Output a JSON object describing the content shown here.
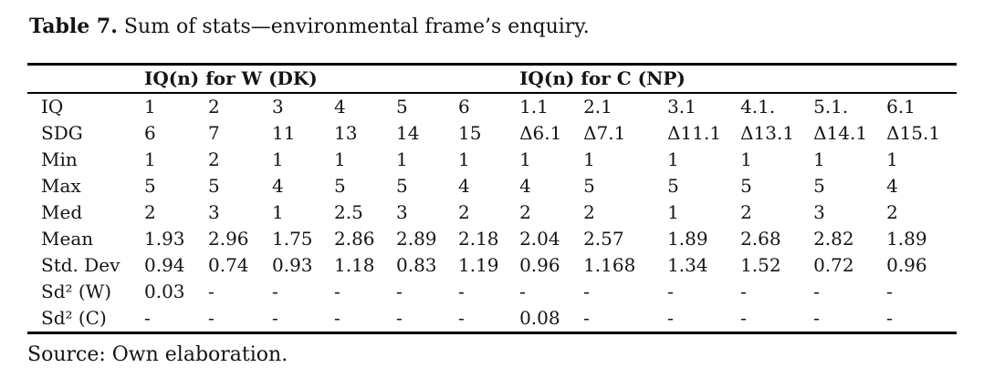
{
  "caption": {
    "number": "Table 7.",
    "text": "Sum of stats—environmental frame’s enquiry."
  },
  "table": {
    "group_headers": [
      {
        "label": "IQ(n) for W (DK)"
      },
      {
        "label": "IQ(n) for C (NP)"
      }
    ],
    "rows": [
      {
        "label": "IQ",
        "values": [
          "1",
          "2",
          "3",
          "4",
          "5",
          "6",
          "1.1",
          "2.1",
          "3.1",
          "4.1.",
          "5.1.",
          "6.1"
        ]
      },
      {
        "label": "SDG",
        "values": [
          "6",
          "7",
          "11",
          "13",
          "14",
          "15",
          "Δ6.1",
          "Δ7.1",
          "Δ11.1",
          "Δ13.1",
          "Δ14.1",
          "Δ15.1"
        ]
      },
      {
        "label": "Min",
        "values": [
          "1",
          "2",
          "1",
          "1",
          "1",
          "1",
          "1",
          "1",
          "1",
          "1",
          "1",
          "1"
        ]
      },
      {
        "label": "Max",
        "values": [
          "5",
          "5",
          "4",
          "5",
          "5",
          "4",
          "4",
          "5",
          "5",
          "5",
          "5",
          "4"
        ]
      },
      {
        "label": "Med",
        "values": [
          "2",
          "3",
          "1",
          "2.5",
          "3",
          "2",
          "2",
          "2",
          "1",
          "2",
          "3",
          "2"
        ]
      },
      {
        "label": "Mean",
        "values": [
          "1.93",
          "2.96",
          "1.75",
          "2.86",
          "2.89",
          "2.18",
          "2.04",
          "2.57",
          "1.89",
          "2.68",
          "2.82",
          "1.89"
        ]
      },
      {
        "label": "Std. Dev",
        "values": [
          "0.94",
          "0.74",
          "0.93",
          "1.18",
          "0.83",
          "1.19",
          "0.96",
          "1.168",
          "1.34",
          "1.52",
          "0.72",
          "0.96"
        ]
      },
      {
        "label": "Sd² (W)",
        "values": [
          "0.03",
          "-",
          "-",
          "-",
          "-",
          "-",
          "-",
          "-",
          "-",
          "-",
          "-",
          "-"
        ]
      },
      {
        "label": "Sd² (C)",
        "values": [
          "-",
          "-",
          "-",
          "-",
          "-",
          "-",
          "0.08",
          "-",
          "-",
          "-",
          "-",
          "-"
        ]
      }
    ]
  },
  "footer": {
    "source": "Source: Own elaboration."
  }
}
